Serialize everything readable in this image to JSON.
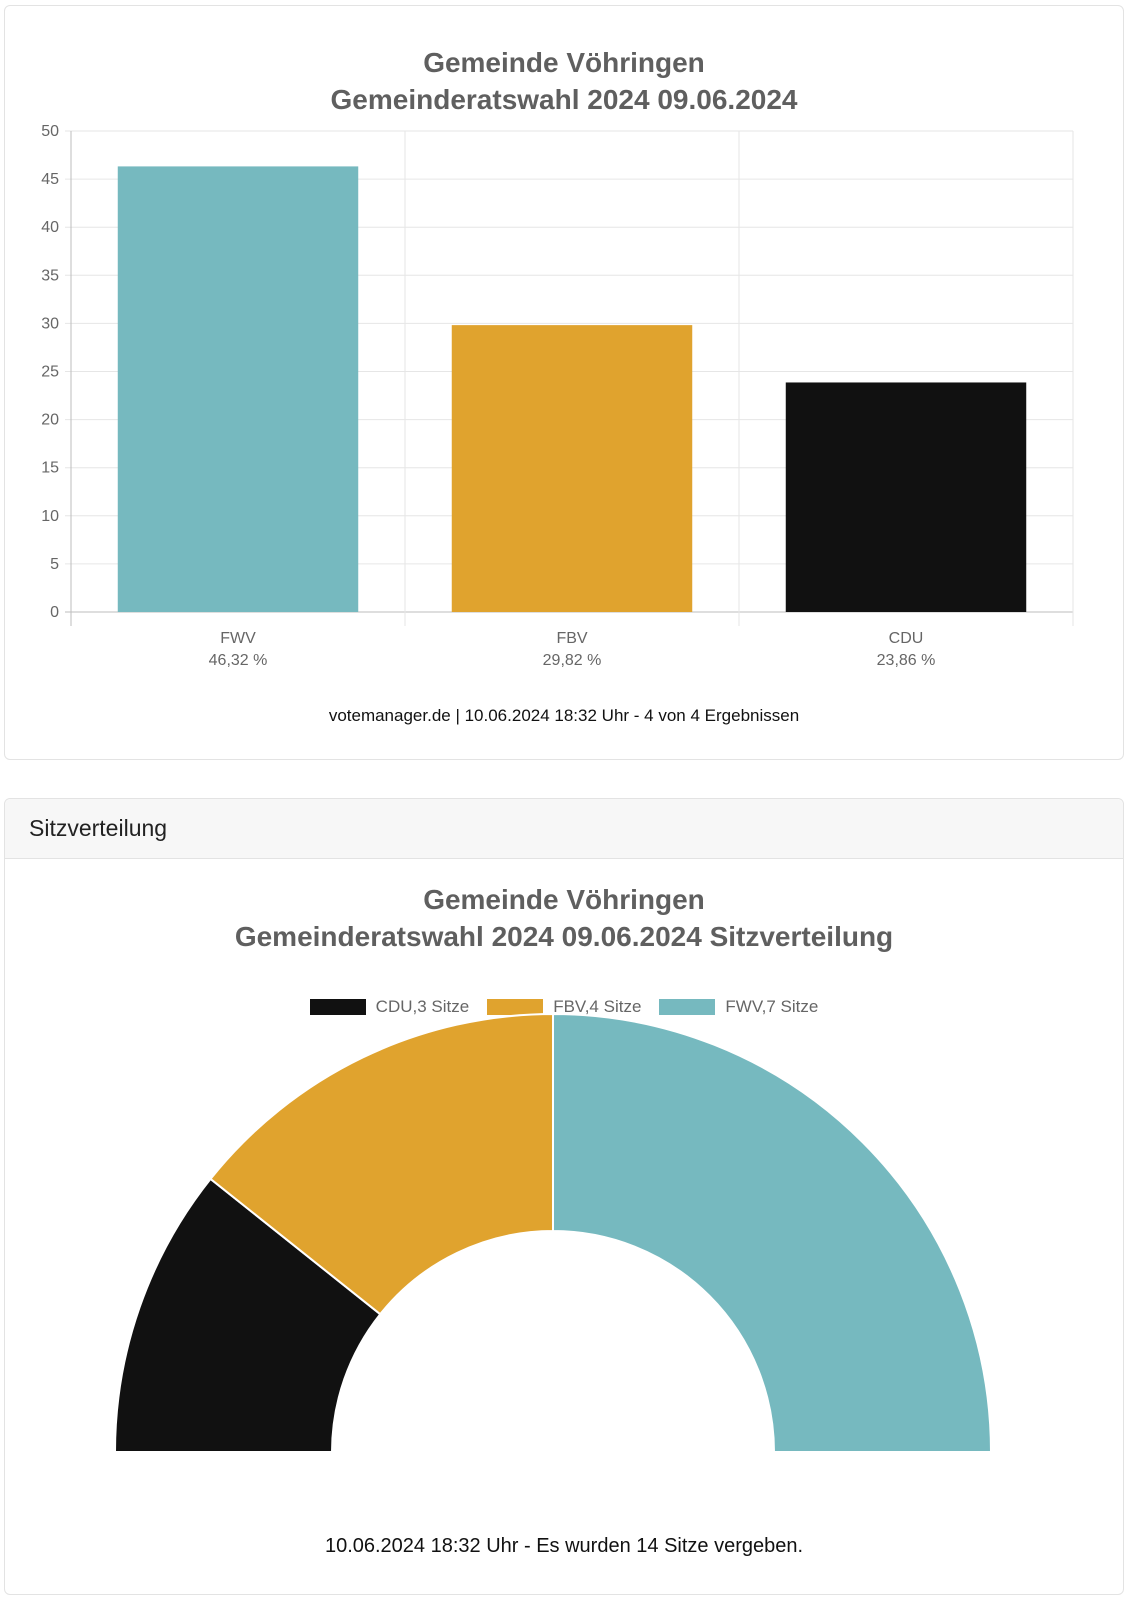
{
  "results_chart": {
    "title_line1": "Gemeinde Vöhringen",
    "title_line2": "Gemeinderatswahl 2024 09.06.2024",
    "footer": "votemanager.de | 10.06.2024 18:32 Uhr - 4 von 4 Ergebnissen"
  },
  "seat_card": {
    "header": "Sitzverteilung",
    "title_line1": "Gemeinde Vöhringen",
    "title_line2": "Gemeinderatswahl 2024 09.06.2024 Sitzverteilung",
    "footer": "10.06.2024 18:32 Uhr - Es wurden 14 Sitze vergeben."
  },
  "chart_data": [
    {
      "type": "bar",
      "title": "Gemeinde Vöhringen Gemeinderatswahl 2024 09.06.2024",
      "categories": [
        "FWV",
        "FBV",
        "CDU"
      ],
      "category_labels": [
        "46,32 %",
        "29,82 %",
        "23,86 %"
      ],
      "values": [
        46.32,
        29.82,
        23.86
      ],
      "colors": [
        "#76b9bf",
        "#e0a32e",
        "#111111"
      ],
      "ylim": [
        0,
        50
      ],
      "yticks": [
        0,
        5,
        10,
        15,
        20,
        25,
        30,
        35,
        40,
        45,
        50
      ],
      "grid": true
    },
    {
      "type": "pie",
      "subtype": "half-doughnut",
      "title": "Gemeinde Vöhringen Gemeinderatswahl 2024 09.06.2024 Sitzverteilung",
      "labels": [
        "CDU",
        "FBV",
        "FWV"
      ],
      "legend_labels": [
        "CDU,3 Sitze",
        "FBV,4 Sitze",
        "FWV,7 Sitze"
      ],
      "values": [
        3,
        4,
        7
      ],
      "colors": [
        "#111111",
        "#e0a32e",
        "#76b9bf"
      ],
      "legend_position": "top"
    }
  ]
}
